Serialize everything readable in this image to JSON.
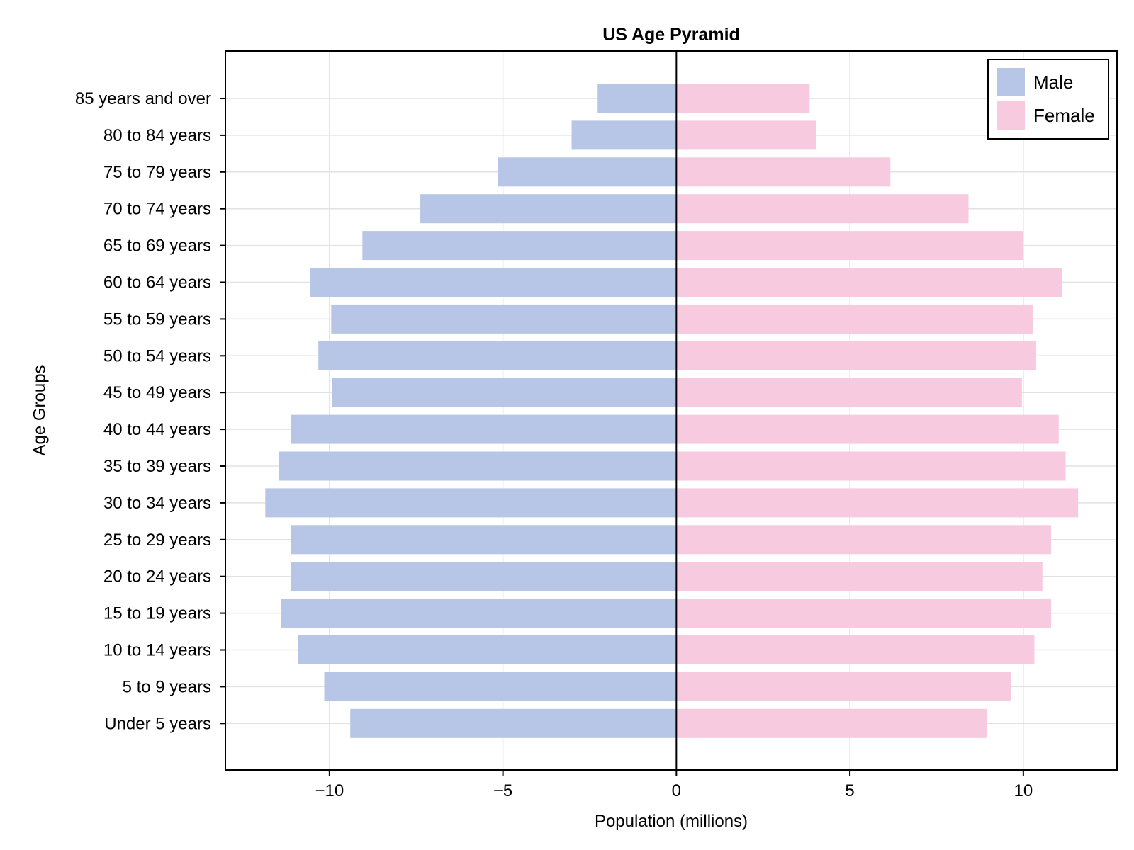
{
  "chart_data": {
    "type": "bar",
    "orientation": "horizontal",
    "title": "US Age Pyramid",
    "xlabel": "Population (millions)",
    "ylabel": "Age Groups",
    "xlim": [
      -13,
      12.7
    ],
    "xticks": [
      -10,
      -5,
      0,
      5,
      10
    ],
    "xtick_labels": [
      "−10",
      "−5",
      "0",
      "5",
      "10"
    ],
    "grid": true,
    "legend_position": "top-right",
    "categories": [
      "Under 5 years",
      "5 to 9 years",
      "10 to 14 years",
      "15 to 19 years",
      "20 to 24 years",
      "25 to 29 years",
      "30 to 34 years",
      "35 to 39 years",
      "40 to 44 years",
      "45 to 49 years",
      "50 to 54 years",
      "55 to 59 years",
      "60 to 64 years",
      "65 to 69 years",
      "70 to 74 years",
      "75 to 79 years",
      "80 to 84 years",
      "85 years and over"
    ],
    "series": [
      {
        "name": "Male",
        "color": "#b7c6e6",
        "values": [
          -9.4,
          -10.15,
          -10.9,
          -11.4,
          -11.1,
          -11.1,
          -11.85,
          -11.45,
          -11.12,
          -9.92,
          -10.32,
          -9.95,
          -10.55,
          -9.05,
          -7.38,
          -5.15,
          -3.02,
          -2.27
        ]
      },
      {
        "name": "Female",
        "color": "#f8cadf",
        "values": [
          8.95,
          9.65,
          10.32,
          10.8,
          10.55,
          10.8,
          11.58,
          11.22,
          11.02,
          9.96,
          10.37,
          10.28,
          11.12,
          10.0,
          8.42,
          6.17,
          4.02,
          3.84
        ]
      }
    ]
  }
}
